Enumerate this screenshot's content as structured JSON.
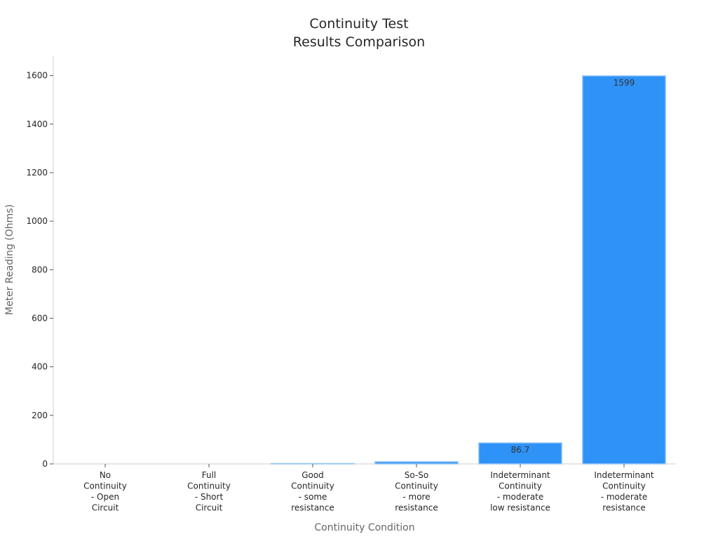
{
  "chart_data": {
    "type": "bar",
    "title": [
      "Continuity Test",
      "Results Comparison"
    ],
    "xlabel": "Continuity Condition",
    "ylabel": "Meter Reading (Ohms)",
    "categories": [
      [
        "No",
        "Continuity",
        "- Open",
        "Circuit"
      ],
      [
        "Full",
        "Continuity",
        "- Short",
        "Circuit"
      ],
      [
        "Good",
        "Continuity",
        "- some",
        "resistance"
      ],
      [
        "So-So",
        "Continuity",
        "- more",
        "resistance"
      ],
      [
        "Indeterminant",
        "Continuity",
        "- moderate",
        "low resistance"
      ],
      [
        "Indeterminant",
        "Continuity",
        "- moderate",
        "resistance"
      ]
    ],
    "values": [
      0,
      0,
      1.5,
      9,
      86.7,
      1599
    ],
    "data_labels": [
      "",
      "",
      "",
      "",
      "86.7",
      "1599"
    ],
    "ylim": [
      0,
      1680
    ],
    "yticks": [
      0,
      200,
      400,
      600,
      800,
      1000,
      1200,
      1400,
      1600
    ],
    "ytick_labels": [
      "0",
      "200",
      "400",
      "600",
      "800",
      "1000",
      "1200",
      "1400",
      "1600"
    ],
    "grid": false,
    "bar_color": "#2e92f7",
    "bar_edge_color": "#9ccaf5"
  }
}
